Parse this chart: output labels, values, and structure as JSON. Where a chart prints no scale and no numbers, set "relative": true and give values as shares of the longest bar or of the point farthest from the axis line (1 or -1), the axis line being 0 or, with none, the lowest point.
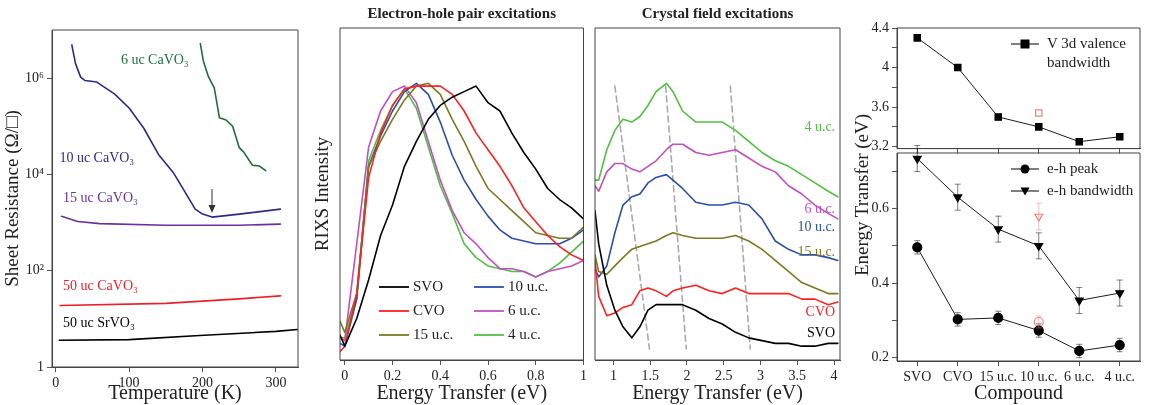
{
  "chart_data": [
    {
      "type": "line",
      "xlabel": "Temperature (K)",
      "ylabel": "Sheet Resistance (Ω/□)",
      "log": "y",
      "grid": false,
      "legend": false,
      "xlim": [
        -5,
        330
      ],
      "xticks": [
        0,
        100,
        200,
        300
      ],
      "ylim": [
        1,
        10000000
      ],
      "yticks": [
        1,
        {
          "value": 100,
          "label": "10²"
        },
        {
          "value": 10000,
          "label": "10⁴"
        },
        {
          "value": 1000000,
          "label": "10⁶"
        }
      ],
      "series": [
        {
          "name": "6 uc CaVO₃",
          "color": "#1e6e3c",
          "x": [
            197,
            201,
            208,
            216,
            223,
            232,
            241,
            250,
            256,
            268,
            277,
            286
          ],
          "values": [
            5200000,
            2300000,
            1070000,
            630000,
            150000,
            135000,
            100000,
            36000,
            29000,
            15500,
            15000,
            12000
          ]
        },
        {
          "name": "10 uc CaVO₃",
          "color": "#2a2a8c",
          "x": [
            22,
            27,
            34,
            40,
            56,
            80,
            100,
            120,
            140,
            160,
            175,
            190,
            200,
            213,
            250,
            306
          ],
          "values": [
            4900000,
            2000000,
            1050000,
            890000,
            830000,
            470000,
            240000,
            91000,
            26000,
            11000,
            4600,
            1900,
            1500,
            1300,
            1500,
            1900
          ]
        },
        {
          "name": "15 uc CaVO₃",
          "color": "#6a2fa0",
          "x": [
            8,
            30,
            60,
            150,
            250,
            306
          ],
          "values": [
            1350,
            1050,
            950,
            880,
            880,
            930
          ]
        },
        {
          "name": "50 uc CaVO₃",
          "color": "#e8202a",
          "x": [
            6,
            150,
            250,
            306
          ],
          "values": [
            19,
            21,
            26,
            30
          ]
        },
        {
          "name": "50 uc SrVO₃",
          "color": "#000000",
          "x": [
            5,
            100,
            196,
            300,
            329
          ],
          "values": [
            3.6,
            3.7,
            4.5,
            5.5,
            6
          ]
        }
      ]
    },
    {
      "type": "line",
      "title": "Electron-hole pair excitations",
      "xlabel": "Energy Transfer (eV)",
      "ylabel": "RIXS Intensity",
      "relative": true,
      "grid": false,
      "legend": "bottom",
      "xlim": [
        -0.02,
        1
      ],
      "xticks": [
        0,
        0.2,
        0.4,
        0.6,
        0.8,
        1
      ],
      "x": [
        -0.02,
        0,
        0.05,
        0.1,
        0.15,
        0.2,
        0.25,
        0.3,
        0.35,
        0.4,
        0.45,
        0.5,
        0.55,
        0.6,
        0.65,
        0.7,
        0.75,
        0.8,
        0.85,
        0.9,
        0.95,
        1
      ],
      "series": [
        {
          "name": "SVO",
          "color": "#000000",
          "values": [
            0.09,
            0.05,
            0.15,
            0.29,
            0.45,
            0.56,
            0.7,
            0.79,
            0.87,
            0.92,
            0.95,
            0.97,
            0.99,
            0.93,
            0.9,
            0.82,
            0.75,
            0.69,
            0.62,
            0.58,
            0.55,
            0.51
          ]
        },
        {
          "name": "CVO",
          "color": "#ff2020",
          "values": [
            0.03,
            0.05,
            0.24,
            0.66,
            0.82,
            0.92,
            0.98,
            0.99,
            0.99,
            0.99,
            0.96,
            0.9,
            0.82,
            0.76,
            0.7,
            0.63,
            0.55,
            0.5,
            0.45,
            0.41,
            0.38,
            0.36
          ]
        },
        {
          "name": "15 u.c.",
          "color": "#7a7a20",
          "values": [
            0.14,
            0.1,
            0.24,
            0.7,
            0.79,
            0.87,
            0.94,
            0.99,
            1.0,
            0.96,
            0.87,
            0.79,
            0.7,
            0.62,
            0.58,
            0.54,
            0.5,
            0.46,
            0.45,
            0.44,
            0.44,
            0.48
          ]
        },
        {
          "name": "10 u.c.",
          "color": "#2a4fb0",
          "values": [
            0.06,
            0.05,
            0.22,
            0.7,
            0.81,
            0.9,
            0.97,
            1.0,
            0.96,
            0.86,
            0.74,
            0.65,
            0.58,
            0.52,
            0.47,
            0.44,
            0.43,
            0.42,
            0.42,
            0.42,
            0.44,
            0.47
          ]
        },
        {
          "name": "6 u.c.",
          "color": "#c050c0",
          "values": [
            0.08,
            0.07,
            0.42,
            0.77,
            0.9,
            0.97,
            0.99,
            0.93,
            0.79,
            0.65,
            0.54,
            0.46,
            0.42,
            0.37,
            0.33,
            0.33,
            0.32,
            0.3,
            0.32,
            0.33,
            0.34,
            0.36
          ]
        },
        {
          "name": "4 u.c.",
          "color": "#50c040",
          "values": [
            0.08,
            0.08,
            0.22,
            0.72,
            0.83,
            0.92,
            0.98,
            0.91,
            0.77,
            0.63,
            0.53,
            0.42,
            0.37,
            0.34,
            0.33,
            0.32,
            0.32,
            0.3,
            0.32,
            0.35,
            0.39,
            0.43
          ]
        }
      ]
    },
    {
      "type": "line",
      "title": "Crystal field excitations",
      "xlabel": "Energy Transfer (eV)",
      "relative": true,
      "grid": false,
      "legend": false,
      "xlim": [
        0.75,
        4.08
      ],
      "xticks": [
        1,
        1.5,
        2,
        2.5,
        3,
        3.5,
        4
      ],
      "x": [
        0.75,
        0.8,
        0.91,
        1.02,
        1.13,
        1.25,
        1.36,
        1.47,
        1.58,
        1.72,
        1.81,
        1.94,
        2.12,
        2.3,
        2.48,
        2.66,
        2.84,
        3.02,
        3.2,
        3.38,
        3.56,
        3.74,
        3.92,
        4.05
      ],
      "series": [
        {
          "name": "SVO",
          "color": "#000000",
          "values": [
            0.54,
            0.42,
            0.27,
            0.18,
            0.12,
            0.08,
            0.12,
            0.18,
            0.2,
            0.2,
            0.2,
            0.2,
            0.18,
            0.15,
            0.13,
            0.1,
            0.08,
            0.07,
            0.06,
            0.06,
            0.05,
            0.05,
            0.06,
            0.06
          ]
        },
        {
          "name": "CVO",
          "color": "#ff2020",
          "values": [
            0.36,
            0.23,
            0.16,
            0.17,
            0.19,
            0.2,
            0.25,
            0.26,
            0.25,
            0.23,
            0.25,
            0.26,
            0.27,
            0.25,
            0.24,
            0.26,
            0.24,
            0.24,
            0.24,
            0.24,
            0.22,
            0.22,
            0.2,
            0.21
          ]
        },
        {
          "name": "15 u.c.",
          "color": "#7a7a20",
          "values": [
            0.38,
            0.32,
            0.31,
            0.34,
            0.37,
            0.4,
            0.41,
            0.42,
            0.43,
            0.45,
            0.46,
            0.45,
            0.44,
            0.44,
            0.44,
            0.45,
            0.43,
            0.4,
            0.36,
            0.32,
            0.28,
            0.26,
            0.24,
            0.24
          ]
        },
        {
          "name": "10 u.c.",
          "color": "#2a4fb0",
          "values": [
            0.33,
            0.3,
            0.34,
            0.46,
            0.56,
            0.59,
            0.6,
            0.64,
            0.66,
            0.67,
            0.65,
            0.62,
            0.57,
            0.56,
            0.56,
            0.57,
            0.56,
            0.51,
            0.43,
            0.4,
            0.38,
            0.38,
            0.37,
            0.36
          ]
        },
        {
          "name": "6 u.c.",
          "color": "#c050c0",
          "values": [
            0.63,
            0.61,
            0.68,
            0.71,
            0.71,
            0.69,
            0.68,
            0.7,
            0.72,
            0.76,
            0.78,
            0.78,
            0.75,
            0.74,
            0.75,
            0.76,
            0.73,
            0.7,
            0.68,
            0.63,
            0.6,
            0.56,
            0.53,
            0.51
          ]
        },
        {
          "name": "4 u.c.",
          "color": "#50c040",
          "values": [
            0.65,
            0.65,
            0.76,
            0.83,
            0.87,
            0.86,
            0.88,
            0.92,
            0.97,
            1.0,
            0.97,
            0.9,
            0.86,
            0.86,
            0.86,
            0.83,
            0.79,
            0.75,
            0.72,
            0.7,
            0.67,
            0.64,
            0.61,
            0.59
          ]
        },
        {
          "type": "line",
          "color": "#aaaaaa",
          "line_style": "dashed",
          "x": [
            1.02,
            1.49
          ],
          "values": [
            0.99,
            0.04
          ]
        },
        {
          "type": "line",
          "color": "#aaaaaa",
          "line_style": "dashed",
          "x": [
            1.71,
            1.99
          ],
          "values": [
            0.99,
            0.04
          ]
        },
        {
          "type": "line",
          "color": "#aaaaaa",
          "line_style": "dashed",
          "x": [
            2.59,
            2.86
          ],
          "values": [
            0.99,
            0.04
          ]
        }
      ]
    },
    {
      "type": "line",
      "categories": [
        "SVO",
        "CVO",
        "15 u.c.",
        "10 u.c.",
        "6 u.c.",
        "4 u.c."
      ],
      "tick_labels": "y",
      "grid": false,
      "legend": "top right",
      "ylim": [
        3.18,
        4.4
      ],
      "yticks": [
        3.2,
        {
          "value": 3.4,
          "label": null
        },
        3.6,
        {
          "value": 3.8,
          "label": null
        },
        4,
        {
          "value": 4.2,
          "label": null
        },
        4.4
      ],
      "series": [
        {
          "name": "V 3d valence bandwidth",
          "color": "#000000",
          "marker": "square",
          "values": [
            4.3,
            4.0,
            3.5,
            3.4,
            3.25,
            3.3
          ]
        },
        {
          "type": "scatter",
          "color": "#f08080",
          "marker": "square",
          "x": [
            "10 u.c."
          ],
          "values": [
            3.54
          ]
        }
      ]
    },
    {
      "type": "line",
      "categories": [
        "SVO",
        "CVO",
        "15 u.c.",
        "10 u.c.",
        "6 u.c.",
        "4 u.c."
      ],
      "xlabel": "Compound",
      "ylabel": "Energy Transfer (eV)",
      "grid": false,
      "legend": "top right",
      "ylim": [
        0.19,
        0.75
      ],
      "yticks": [
        0.2,
        {
          "value": 0.3,
          "label": null
        },
        0.4,
        {
          "value": 0.5,
          "label": null
        },
        0.6,
        {
          "value": 0.7,
          "label": null
        }
      ],
      "series": [
        {
          "name": "e-h peak",
          "color": "#000000",
          "marker": "circle",
          "values": [
            0.496,
            0.302,
            0.306,
            0.272,
            0.217,
            0.233
          ],
          "errors": [
            0.018,
            0.018,
            0.018,
            0.018,
            0.018,
            0.018
          ]
        },
        {
          "name": "e-h bandwidth",
          "color": "#000000",
          "marker": "triangle",
          "values": [
            0.735,
            0.631,
            0.545,
            0.5,
            0.353,
            0.373
          ],
          "errors": [
            0.035,
            0.035,
            0.035,
            0.035,
            0.035,
            0.035
          ]
        },
        {
          "type": "scatter",
          "color": "#f08080",
          "marker": "triangle",
          "x": [
            "10 u.c."
          ],
          "values": [
            0.579
          ],
          "errors": [
            0.036
          ]
        },
        {
          "type": "scatter",
          "color": "#f08080",
          "marker": "circle",
          "x": [
            "10 u.c."
          ],
          "values": [
            0.295
          ],
          "errors": [
            0.016
          ]
        }
      ]
    }
  ]
}
